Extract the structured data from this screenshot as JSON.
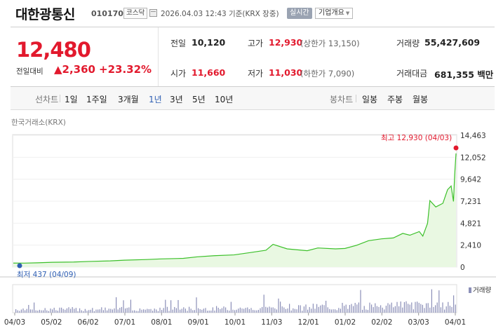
{
  "header": {
    "name": "대한광통신",
    "code": "010170",
    "market": "코스닥",
    "timestamp": "2026.04.03 12:43 기준(KRX 장중)",
    "realtime_label": "실시간",
    "company_label": "기업개요"
  },
  "quote": {
    "price": "12,480",
    "change_label": "전일대비",
    "change": "▲2,360",
    "change_pct": "+23.32%",
    "prev_label": "전일",
    "prev": "10,120",
    "open_label": "시가",
    "open": "11,660",
    "high_label": "고가",
    "high": "12,930",
    "upper_limit": "(상한가 13,150)",
    "low_label": "저가",
    "low": "11,030",
    "lower_limit": "(하한가 7,090)",
    "volume_label": "거래량",
    "volume": "55,427,609",
    "amount_label": "거래대금",
    "amount": "681,355 백만"
  },
  "tabs": {
    "line_label": "선차트",
    "periods": [
      "1일",
      "1주일",
      "3개월",
      "1년",
      "3년",
      "5년",
      "10년"
    ],
    "active_period": "1년",
    "candle_label": "봉차트",
    "candle_periods": [
      "일봉",
      "주봉",
      "월봉"
    ]
  },
  "chart_source": "한국거래소(KRX)",
  "chart_data": {
    "type": "area",
    "x_labels": [
      "04/03",
      "05/02",
      "06/02",
      "07/01",
      "08/01",
      "09/01",
      "10/01",
      "11/03",
      "12/01",
      "01/02",
      "02/02",
      "03/03",
      "04/01"
    ],
    "y_ticks": [
      14463,
      12052,
      9642,
      7231,
      4821,
      2410,
      0
    ],
    "y_tick_labels": [
      "14,463",
      "12,052",
      "9,642",
      "7,231",
      "4,821",
      "2,410",
      "0"
    ],
    "ylim": [
      0,
      14463
    ],
    "points": [
      {
        "d": "04/03",
        "v": 440
      },
      {
        "d": "04/09",
        "v": 437
      },
      {
        "d": "04/20",
        "v": 470
      },
      {
        "d": "05/02",
        "v": 530
      },
      {
        "d": "05/20",
        "v": 560
      },
      {
        "d": "06/02",
        "v": 620
      },
      {
        "d": "06/20",
        "v": 680
      },
      {
        "d": "07/01",
        "v": 760
      },
      {
        "d": "07/20",
        "v": 830
      },
      {
        "d": "08/01",
        "v": 900
      },
      {
        "d": "08/20",
        "v": 960
      },
      {
        "d": "09/01",
        "v": 1130
      },
      {
        "d": "09/15",
        "v": 1250
      },
      {
        "d": "10/01",
        "v": 1340
      },
      {
        "d": "10/15",
        "v": 1600
      },
      {
        "d": "10/28",
        "v": 1850
      },
      {
        "d": "11/03",
        "v": 2500
      },
      {
        "d": "11/15",
        "v": 2000
      },
      {
        "d": "12/01",
        "v": 1800
      },
      {
        "d": "12/10",
        "v": 2100
      },
      {
        "d": "12/25",
        "v": 2000
      },
      {
        "d": "01/02",
        "v": 2050
      },
      {
        "d": "01/12",
        "v": 2400
      },
      {
        "d": "01/22",
        "v": 2900
      },
      {
        "d": "02/02",
        "v": 3100
      },
      {
        "d": "02/12",
        "v": 3200
      },
      {
        "d": "02/20",
        "v": 3700
      },
      {
        "d": "02/26",
        "v": 3500
      },
      {
        "d": "03/03",
        "v": 3900
      },
      {
        "d": "03/06",
        "v": 3400
      },
      {
        "d": "03/10",
        "v": 4800
      },
      {
        "d": "03/12",
        "v": 7300
      },
      {
        "d": "03/17",
        "v": 6600
      },
      {
        "d": "03/23",
        "v": 7000
      },
      {
        "d": "03/27",
        "v": 8500
      },
      {
        "d": "03/30",
        "v": 8900
      },
      {
        "d": "04/01",
        "v": 7200
      },
      {
        "d": "04/02",
        "v": 10120
      },
      {
        "d": "04/03",
        "v": 12480
      }
    ],
    "high_annotation": "최고 12,930 (04/03)",
    "low_annotation": "최저 437 (04/09)",
    "volume_label": "거래량",
    "colors": {
      "line": "#3cc02a",
      "fill": "#e9f8e2",
      "high": "#e2192d",
      "low": "#2f5fb3",
      "volume": "#8b8fb8"
    }
  }
}
